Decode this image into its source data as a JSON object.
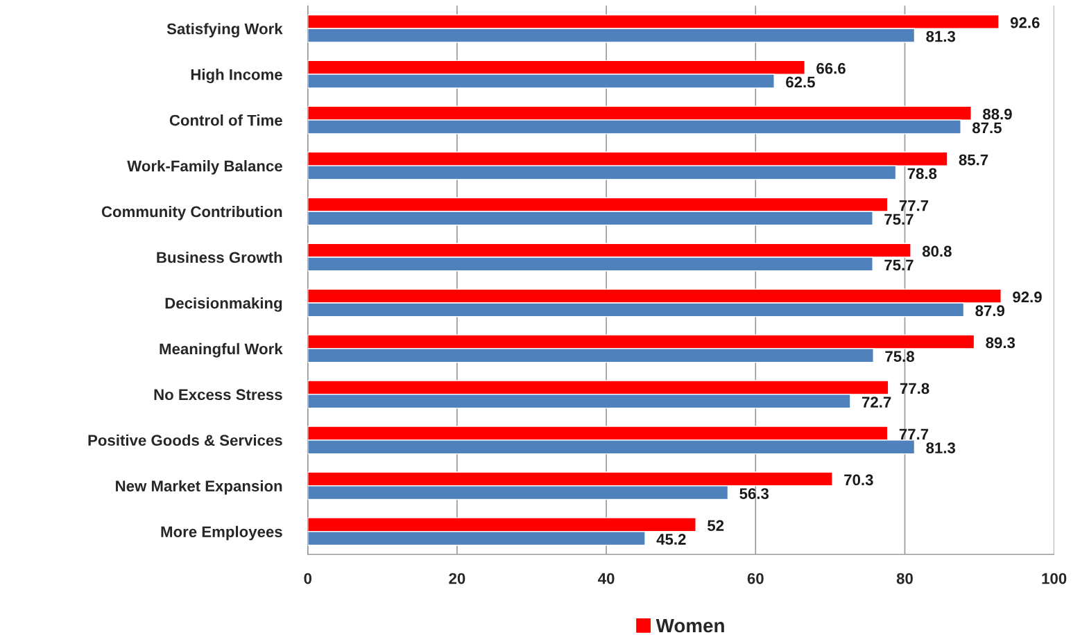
{
  "chart_data": {
    "type": "bar",
    "orientation": "horizontal",
    "categories": [
      "Satisfying Work",
      "High Income",
      "Control of Time",
      "Work-Family Balance",
      "Community Contribution",
      "Business Growth",
      "Decisionmaking",
      "Meaningful Work",
      "No Excess Stress",
      "Positive Goods & Services",
      "New Market Expansion",
      "More Employees"
    ],
    "series": [
      {
        "name": "Women",
        "color": "#ff0000",
        "values": [
          92.6,
          66.6,
          88.9,
          85.7,
          77.7,
          80.8,
          92.9,
          89.3,
          77.8,
          77.7,
          70.3,
          52
        ]
      },
      {
        "color": "#4f81bd",
        "values": [
          81.3,
          62.5,
          87.5,
          78.8,
          75.7,
          75.7,
          87.9,
          75.8,
          72.7,
          81.3,
          56.3,
          45.2
        ]
      }
    ],
    "xlim": [
      0,
      100
    ],
    "xticks": [
      0,
      20,
      40,
      60,
      80,
      100
    ],
    "grid": "x",
    "legend": "bottom",
    "data_labels": true
  }
}
